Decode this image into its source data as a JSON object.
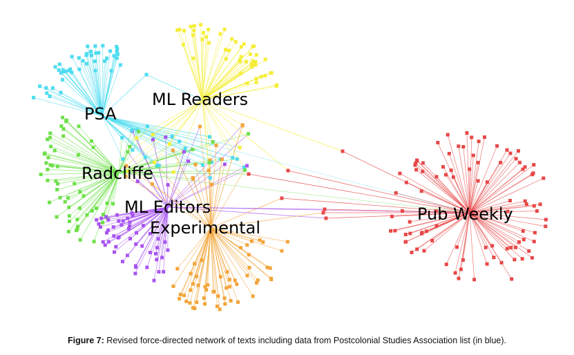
{
  "figure": {
    "label": "Figure 7:",
    "caption": "Revised force-directed network of texts including data from Postcolonial Studies Association list (in blue)."
  },
  "network": {
    "hubs": [
      {
        "id": "psa",
        "label": "PSA",
        "color": "#4ddcf0"
      },
      {
        "id": "mlreaders",
        "label": "ML Readers",
        "color": "#f5ee3a"
      },
      {
        "id": "radcliffe",
        "label": "Radcliffe",
        "color": "#6ee04a"
      },
      {
        "id": "mleditors",
        "label": "ML Editors",
        "color": "#a855f0"
      },
      {
        "id": "experimental",
        "label": "Experimental",
        "color": "#f2a53a"
      },
      {
        "id": "pubweekly",
        "label": "Pub Weekly",
        "color": "#e84848"
      }
    ]
  }
}
